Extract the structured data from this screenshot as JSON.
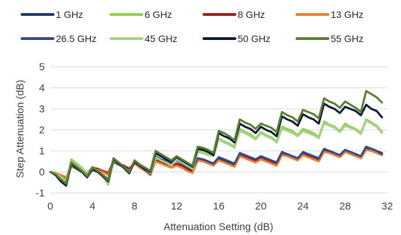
{
  "chart_data": {
    "type": "line",
    "xlabel": "Attenuation Setting (dB)",
    "ylabel": "Step Attenuation (dB)",
    "xlim": [
      0,
      32
    ],
    "ylim": [
      -1,
      5
    ],
    "xticks": [
      0,
      4,
      8,
      12,
      16,
      20,
      24,
      28,
      32
    ],
    "yticks": [
      -1,
      0,
      1,
      2,
      3,
      4,
      5
    ],
    "grid": "horizontal",
    "legend_position": "top",
    "x": [
      0,
      0.5,
      1,
      1.5,
      2,
      2.5,
      3,
      3.5,
      4,
      4.5,
      5,
      5.5,
      6,
      6.5,
      7,
      7.5,
      8,
      8.5,
      9,
      9.5,
      10,
      10.5,
      11,
      11.5,
      12,
      12.5,
      13,
      13.5,
      14,
      14.5,
      15,
      15.5,
      16,
      16.5,
      17,
      17.5,
      18,
      18.5,
      19,
      19.5,
      20,
      20.5,
      21,
      21.5,
      22,
      22.5,
      23,
      23.5,
      24,
      24.5,
      25,
      25.5,
      26,
      26.5,
      27,
      27.5,
      28,
      28.5,
      29,
      29.5,
      30,
      30.5,
      31,
      31.5
    ],
    "series": [
      {
        "name": "1 GHz",
        "color": "#1f3864",
        "values": [
          0,
          -0.05,
          -0.2,
          -0.35,
          0.3,
          0.2,
          0.05,
          -0.15,
          0.2,
          0.15,
          0,
          -0.1,
          0.5,
          0.4,
          0.25,
          0.1,
          0.45,
          0.3,
          0.15,
          0,
          0.55,
          0.45,
          0.35,
          0.25,
          0.35,
          0.25,
          0.1,
          0,
          0.6,
          0.55,
          0.45,
          0.35,
          0.65,
          0.55,
          0.45,
          0.35,
          0.8,
          0.7,
          0.6,
          0.5,
          0.65,
          0.55,
          0.45,
          0.35,
          0.85,
          0.8,
          0.7,
          0.6,
          0.85,
          0.75,
          0.65,
          0.55,
          1.0,
          0.95,
          0.85,
          0.75,
          1.0,
          0.9,
          0.8,
          0.7,
          1.1,
          1.05,
          0.95,
          0.85
        ]
      },
      {
        "name": "6 GHz",
        "color": "#92d050",
        "values": [
          0,
          -0.1,
          -0.3,
          -0.5,
          0.6,
          0.4,
          0.2,
          -0.1,
          0.25,
          0.05,
          -0.2,
          -0.6,
          0.6,
          0.45,
          0.2,
          -0.05,
          0.55,
          0.35,
          0.2,
          0,
          0.75,
          0.6,
          0.5,
          0.35,
          0.65,
          0.5,
          0.35,
          0.2,
          1.0,
          0.95,
          0.85,
          0.8,
          1.6,
          1.45,
          1.35,
          1.2,
          2.05,
          1.9,
          1.8,
          1.6,
          1.9,
          1.75,
          1.65,
          1.45,
          2.15,
          2.05,
          1.95,
          1.75,
          2.05,
          1.95,
          1.85,
          1.65,
          2.4,
          2.25,
          2.15,
          1.95,
          2.3,
          2.15,
          2.05,
          1.85,
          2.5,
          2.35,
          2.2,
          1.9
        ]
      },
      {
        "name": "8 GHz",
        "color": "#9c1b1b",
        "values": [
          0,
          -0.05,
          -0.15,
          -0.3,
          0.35,
          0.25,
          0.1,
          -0.1,
          0.2,
          0.15,
          0.05,
          -0.05,
          0.5,
          0.4,
          0.3,
          0.15,
          0.45,
          0.35,
          0.2,
          0.05,
          0.55,
          0.5,
          0.4,
          0.3,
          0.4,
          0.3,
          0.2,
          0.1,
          0.65,
          0.6,
          0.5,
          0.4,
          0.7,
          0.6,
          0.5,
          0.4,
          0.85,
          0.75,
          0.65,
          0.55,
          0.7,
          0.6,
          0.5,
          0.4,
          0.9,
          0.85,
          0.75,
          0.65,
          0.9,
          0.8,
          0.7,
          0.6,
          1.05,
          1.0,
          0.9,
          0.8,
          1.05,
          0.95,
          0.85,
          0.75,
          1.15,
          1.1,
          1.0,
          0.9
        ]
      },
      {
        "name": "13 GHz",
        "color": "#ed7d31",
        "values": [
          0,
          -0.05,
          -0.15,
          -0.25,
          0.25,
          0.15,
          0.05,
          -0.1,
          0.15,
          0.1,
          0,
          -0.15,
          0.45,
          0.35,
          0.2,
          0.05,
          0.4,
          0.2,
          0.05,
          -0.15,
          0.5,
          0.4,
          0.3,
          0.2,
          0.3,
          0.2,
          0.05,
          -0.05,
          0.55,
          0.5,
          0.4,
          0.3,
          0.55,
          0.45,
          0.35,
          0.25,
          0.75,
          0.65,
          0.55,
          0.45,
          0.6,
          0.5,
          0.4,
          0.3,
          0.8,
          0.75,
          0.65,
          0.55,
          0.8,
          0.7,
          0.6,
          0.5,
          0.95,
          0.9,
          0.8,
          0.7,
          0.95,
          0.85,
          0.75,
          0.65,
          1.05,
          1.0,
          0.9,
          0.8
        ]
      },
      {
        "name": "26.5 GHz",
        "color": "#2f4b8a",
        "values": [
          0,
          -0.1,
          -0.35,
          -0.6,
          0.35,
          0.15,
          0,
          -0.25,
          0.1,
          0,
          -0.15,
          -0.35,
          0.5,
          0.35,
          0.2,
          -0.05,
          0.45,
          0.3,
          0.1,
          -0.1,
          0.75,
          0.6,
          0.5,
          0.4,
          0.55,
          0.4,
          0.25,
          0.15,
          0.65,
          0.6,
          0.5,
          0.4,
          0.7,
          0.6,
          0.5,
          0.4,
          0.9,
          0.8,
          0.7,
          0.6,
          0.75,
          0.65,
          0.55,
          0.45,
          0.95,
          0.85,
          0.75,
          0.65,
          0.95,
          0.85,
          0.75,
          0.65,
          1.1,
          1.0,
          0.9,
          0.8,
          1.05,
          0.95,
          0.85,
          0.75,
          1.2,
          1.1,
          1.0,
          0.85
        ]
      },
      {
        "name": "45 GHz",
        "color": "#a9d18e",
        "values": [
          0,
          -0.05,
          -0.25,
          -0.4,
          0.5,
          0.3,
          0.15,
          -0.15,
          0.2,
          0.05,
          -0.25,
          -0.55,
          0.55,
          0.4,
          0.15,
          -0.1,
          0.5,
          0.3,
          0.15,
          -0.05,
          0.7,
          0.55,
          0.45,
          0.3,
          0.6,
          0.45,
          0.3,
          0.15,
          0.95,
          0.9,
          0.8,
          0.75,
          1.55,
          1.4,
          1.3,
          1.15,
          1.95,
          1.85,
          1.7,
          1.55,
          1.85,
          1.7,
          1.6,
          1.4,
          2.05,
          1.95,
          1.85,
          1.7,
          1.95,
          1.85,
          1.75,
          1.6,
          2.3,
          2.2,
          2.1,
          1.9,
          2.2,
          2.1,
          2.0,
          1.8,
          2.45,
          2.3,
          2.15,
          1.85
        ]
      },
      {
        "name": "50 GHz",
        "color": "#0d1b33",
        "values": [
          0,
          -0.15,
          -0.45,
          -0.65,
          0.4,
          0.2,
          0,
          -0.25,
          0.15,
          0,
          -0.2,
          -0.45,
          0.6,
          0.4,
          0.2,
          -0.05,
          0.5,
          0.3,
          0.15,
          0,
          0.9,
          0.75,
          0.6,
          0.5,
          0.7,
          0.55,
          0.4,
          0.25,
          1.1,
          1.05,
          0.95,
          0.8,
          1.85,
          1.7,
          1.6,
          1.4,
          2.3,
          2.15,
          2.05,
          1.85,
          2.15,
          2.0,
          1.9,
          1.7,
          2.65,
          2.5,
          2.4,
          2.2,
          2.75,
          2.6,
          2.5,
          2.3,
          3.25,
          3.1,
          3.0,
          2.8,
          3.1,
          3.0,
          2.9,
          2.7,
          3.2,
          3.0,
          2.9,
          2.6
        ]
      },
      {
        "name": "55 GHz",
        "color": "#5a7d36",
        "values": [
          0,
          -0.1,
          -0.35,
          -0.55,
          0.45,
          0.25,
          0.05,
          -0.2,
          0.2,
          0.05,
          -0.15,
          -0.4,
          0.65,
          0.45,
          0.25,
          0.0,
          0.55,
          0.35,
          0.2,
          0.05,
          1.0,
          0.85,
          0.7,
          0.55,
          0.75,
          0.6,
          0.45,
          0.3,
          1.2,
          1.15,
          1.05,
          0.9,
          1.95,
          1.85,
          1.7,
          1.5,
          2.5,
          2.35,
          2.25,
          2.05,
          2.3,
          2.2,
          2.1,
          1.9,
          2.85,
          2.7,
          2.6,
          2.4,
          2.95,
          2.85,
          2.75,
          2.55,
          3.5,
          3.35,
          3.25,
          3.05,
          3.35,
          3.2,
          3.05,
          2.85,
          3.85,
          3.7,
          3.55,
          3.3
        ]
      }
    ]
  }
}
